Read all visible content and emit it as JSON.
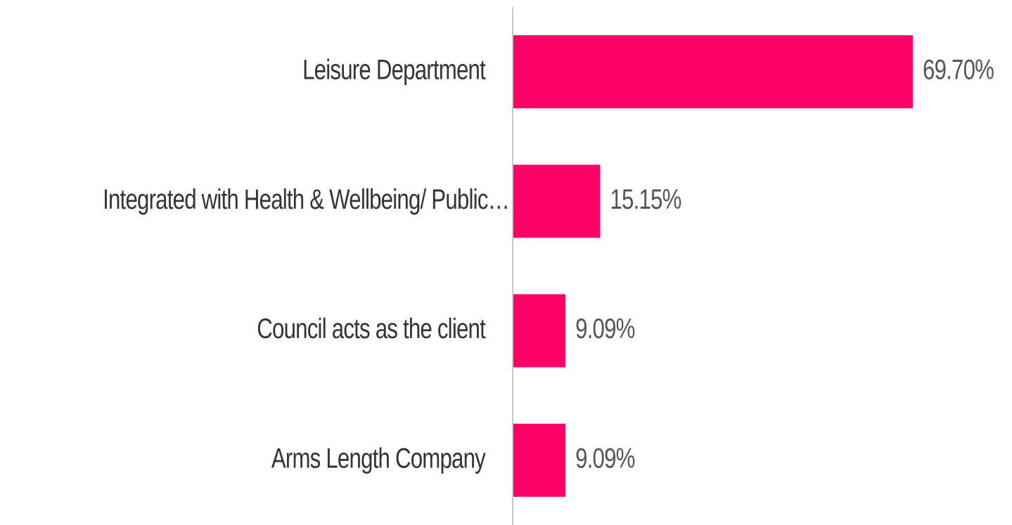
{
  "chart_data": {
    "type": "bar",
    "orientation": "horizontal",
    "categories": [
      "Leisure Department",
      "Integrated with Health & Wellbeing/ Public…",
      "Council acts as the client",
      "Arms Length Company"
    ],
    "values": [
      69.7,
      15.15,
      9.09,
      9.09
    ],
    "value_labels": [
      "69.70%",
      "15.15%",
      "9.09%",
      "9.09%"
    ],
    "color": "#ff0066"
  }
}
